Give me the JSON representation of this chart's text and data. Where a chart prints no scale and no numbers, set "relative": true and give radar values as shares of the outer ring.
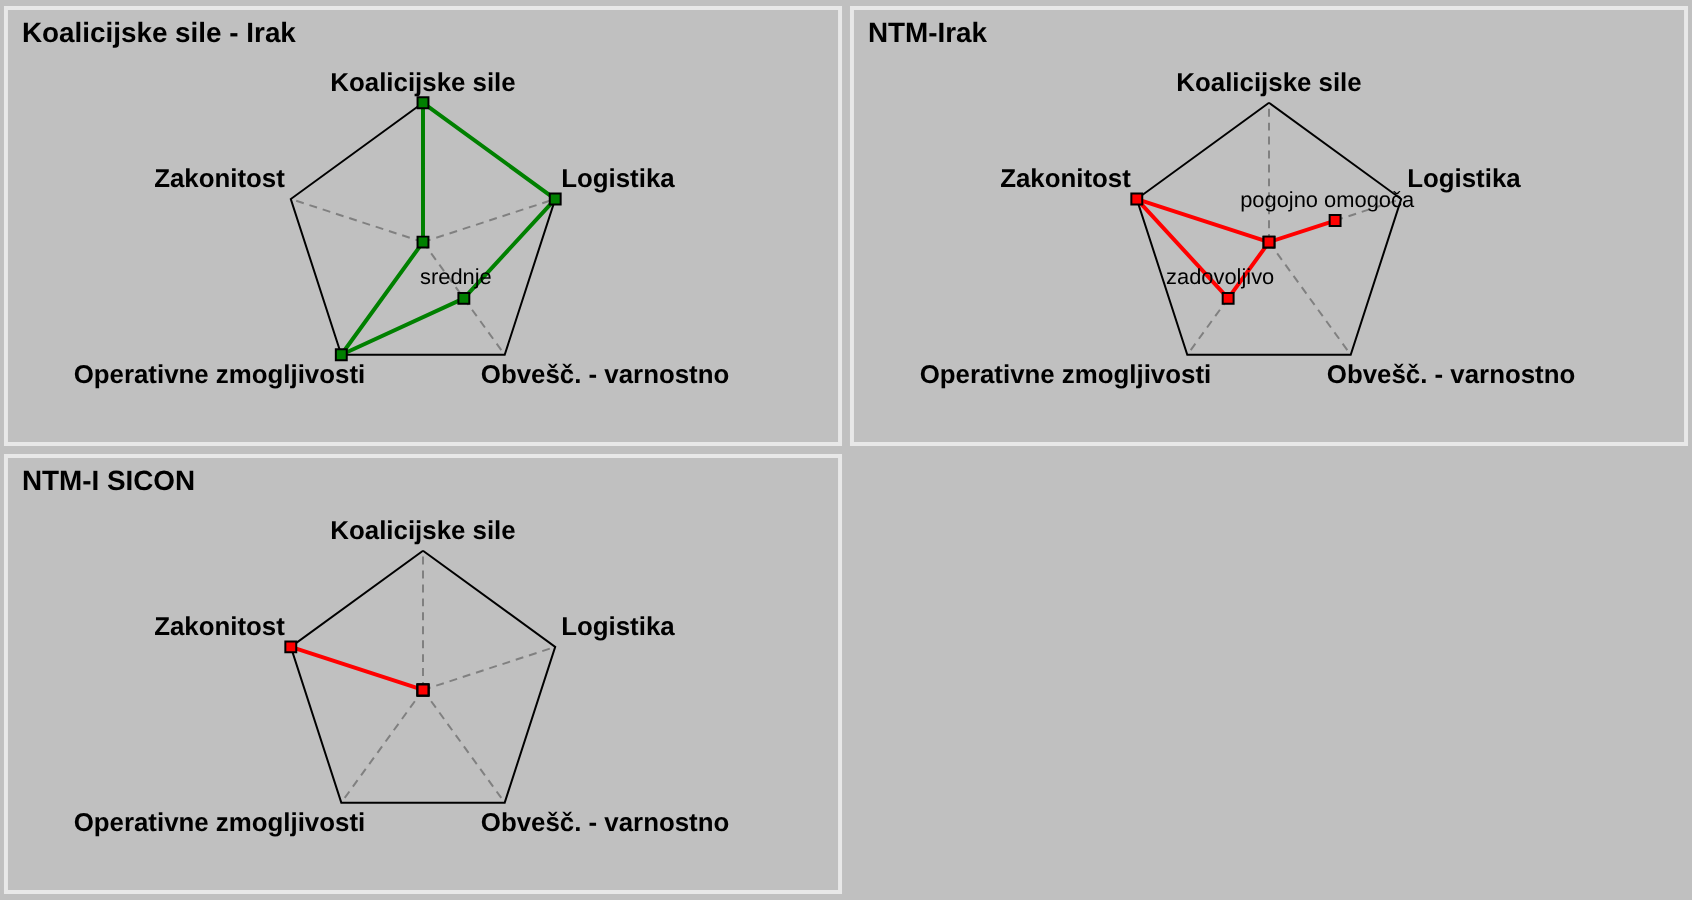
{
  "chart_data": [
    {
      "type": "radar",
      "title": "Koalicijske sile - Irak",
      "categories": [
        "Koalicijske sile",
        "Logistika",
        "Obvešč. - varnostno",
        "Operativne zmogljivosti",
        "Zakonitost"
      ],
      "relative": true,
      "grid": true,
      "marker": "square",
      "line_style": "solid",
      "series": [
        {
          "color": "#008000",
          "values": [
            1,
            1,
            0.5,
            1,
            0
          ]
        }
      ],
      "annotations": [
        {
          "text": "srednje",
          "x": "Obvešč. - varnostno"
        }
      ]
    },
    {
      "type": "radar",
      "title": "NTM-Irak",
      "categories": [
        "Koalicijske sile",
        "Logistika",
        "Obvešč. - varnostno",
        "Operativne zmogljivosti",
        "Zakonitost"
      ],
      "relative": true,
      "grid": true,
      "marker": "square",
      "line_style": "solid",
      "series": [
        {
          "color": "#ff0000",
          "values": [
            0,
            0.5,
            0,
            0.5,
            1
          ]
        }
      ],
      "annotations": [
        {
          "text": "pogojno omogoča",
          "x": "Logistika"
        },
        {
          "text": "zadovoljivo",
          "x": "Operativne zmogljivosti"
        }
      ]
    },
    {
      "type": "radar",
      "title": "NTM-I SICON",
      "categories": [
        "Koalicijske sile",
        "Logistika",
        "Obvešč. - varnostno",
        "Operativne zmogljivosti",
        "Zakonitost"
      ],
      "relative": true,
      "grid": true,
      "marker": "square",
      "line_style": "solid",
      "series": [
        {
          "color": "#ff0000",
          "values": [
            0,
            0,
            0,
            0,
            1
          ]
        }
      ]
    }
  ]
}
